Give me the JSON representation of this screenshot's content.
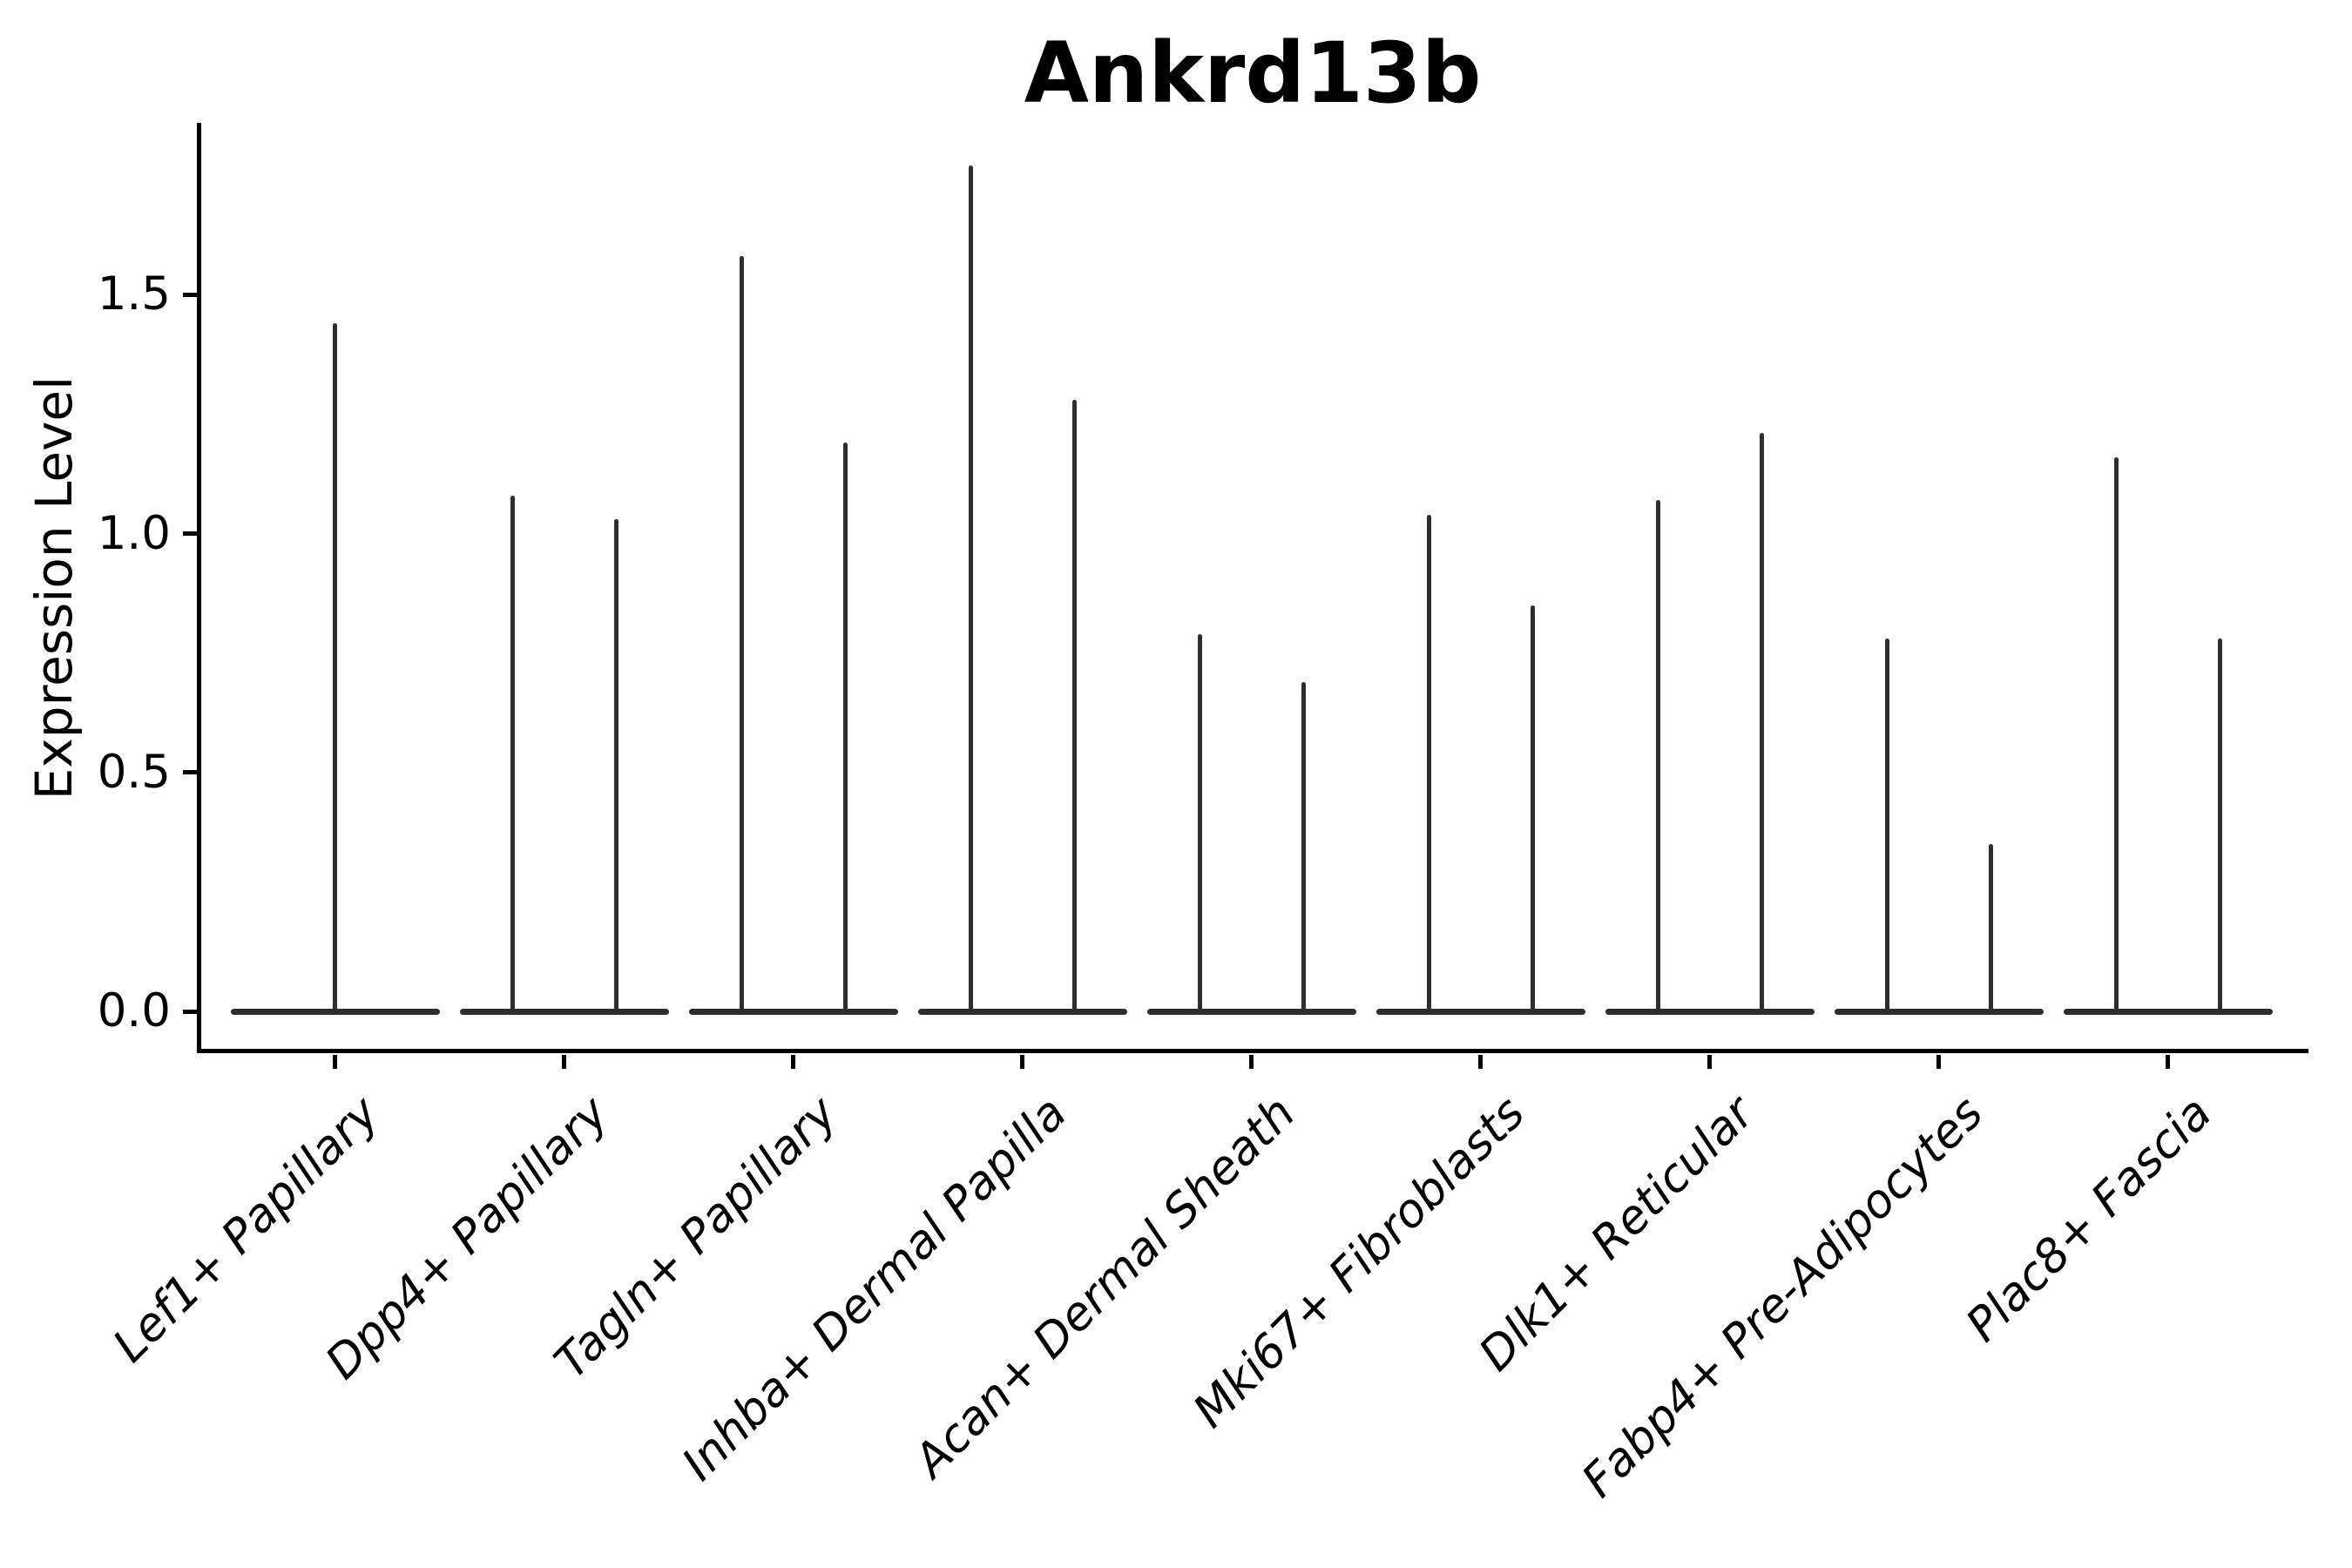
{
  "title": "Ankrd13b",
  "ylabel": "Expression Level",
  "ink_color": "#2e2e2e",
  "axis_color": "#000000",
  "chart_data": {
    "type": "violin",
    "title": "Ankrd13b",
    "xlabel": "",
    "ylabel": "Expression Level",
    "ylim": [
      -0.09,
      1.86
    ],
    "yticks": [
      0.0,
      0.5,
      1.0,
      1.5
    ],
    "ytick_labels": [
      "0.0",
      "0.5",
      "1.0",
      "1.5"
    ],
    "grid": false,
    "legend_position": "none",
    "x_tick_rotation": 45,
    "categories": [
      "Lef1+ Papillary",
      "Dpp4+ Papillary",
      "Tagln+ Papillary",
      "Inhba+ Dermal Papilla",
      "Acan+ Dermal Sheath",
      "Mki67+ Fibroblasts",
      "Dlk1+ Reticular",
      "Fabp4+ Pre-Adipocytes",
      "Plac8+ Fascia"
    ],
    "series_description": "Each violin: dense mass at expression 0 (wide flat base) with a thin vertical spike up to the maximum expression value; first category has a single centered violin, all others have a left/right pair.",
    "groups": [
      {
        "label": "Lef1+ Papillary",
        "violin_peaks": [
          1.44
        ]
      },
      {
        "label": "Dpp4+ Papillary",
        "violin_peaks": [
          1.08,
          1.03
        ]
      },
      {
        "label": "Tagln+ Papillary",
        "violin_peaks": [
          1.58,
          1.19
        ]
      },
      {
        "label": "Inhba+ Dermal Papilla",
        "violin_peaks": [
          1.77,
          1.28
        ]
      },
      {
        "label": "Acan+ Dermal Sheath",
        "violin_peaks": [
          0.79,
          0.69
        ]
      },
      {
        "label": "Mki67+ Fibroblasts",
        "violin_peaks": [
          1.04,
          0.85
        ]
      },
      {
        "label": "Dlk1+ Reticular",
        "violin_peaks": [
          1.07,
          1.21
        ]
      },
      {
        "label": "Fabp4+ Pre-Adipocytes",
        "violin_peaks": [
          0.78,
          0.35
        ]
      },
      {
        "label": "Plac8+ Fascia",
        "violin_peaks": [
          1.16,
          0.78
        ]
      }
    ]
  }
}
